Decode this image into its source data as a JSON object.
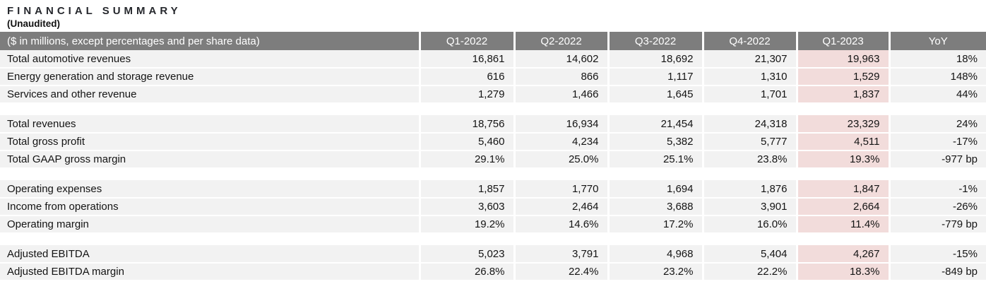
{
  "title": "FINANCIAL SUMMARY",
  "subtitle": "(Unaudited)",
  "table": {
    "label_header": "($ in millions, except percentages and per share data)",
    "columns": [
      "Q1-2022",
      "Q2-2022",
      "Q3-2022",
      "Q4-2022",
      "Q1-2023",
      "YoY"
    ],
    "highlighted_column": "Q1-2023",
    "colors": {
      "header_bg": "#7d7d7d",
      "row_bg": "#f2f2f2",
      "highlight_bg": "#f2dcdb",
      "header_text": "#ffffff"
    },
    "groups": [
      {
        "rows": [
          {
            "label": "Total automotive revenues",
            "values": [
              "16,861",
              "14,602",
              "18,692",
              "21,307",
              "19,963",
              "18%"
            ]
          },
          {
            "label": "Energy generation and storage revenue",
            "values": [
              "616",
              "866",
              "1,117",
              "1,310",
              "1,529",
              "148%"
            ]
          },
          {
            "label": "Services and other revenue",
            "values": [
              "1,279",
              "1,466",
              "1,645",
              "1,701",
              "1,837",
              "44%"
            ]
          }
        ]
      },
      {
        "rows": [
          {
            "label": "Total revenues",
            "values": [
              "18,756",
              "16,934",
              "21,454",
              "24,318",
              "23,329",
              "24%"
            ]
          },
          {
            "label": "Total gross profit",
            "values": [
              "5,460",
              "4,234",
              "5,382",
              "5,777",
              "4,511",
              "-17%"
            ]
          },
          {
            "label": "Total GAAP gross margin",
            "values": [
              "29.1%",
              "25.0%",
              "25.1%",
              "23.8%",
              "19.3%",
              "-977 bp"
            ]
          }
        ]
      },
      {
        "rows": [
          {
            "label": "Operating expenses",
            "values": [
              "1,857",
              "1,770",
              "1,694",
              "1,876",
              "1,847",
              "-1%"
            ]
          },
          {
            "label": "Income from operations",
            "values": [
              "3,603",
              "2,464",
              "3,688",
              "3,901",
              "2,664",
              "-26%"
            ]
          },
          {
            "label": "Operating margin",
            "values": [
              "19.2%",
              "14.6%",
              "17.2%",
              "16.0%",
              "11.4%",
              "-779 bp"
            ]
          }
        ]
      },
      {
        "rows": [
          {
            "label": "Adjusted EBITDA",
            "values": [
              "5,023",
              "3,791",
              "4,968",
              "5,404",
              "4,267",
              "-15%"
            ]
          },
          {
            "label": "Adjusted EBITDA margin",
            "values": [
              "26.8%",
              "22.4%",
              "23.2%",
              "22.2%",
              "18.3%",
              "-849 bp"
            ]
          }
        ]
      }
    ]
  }
}
